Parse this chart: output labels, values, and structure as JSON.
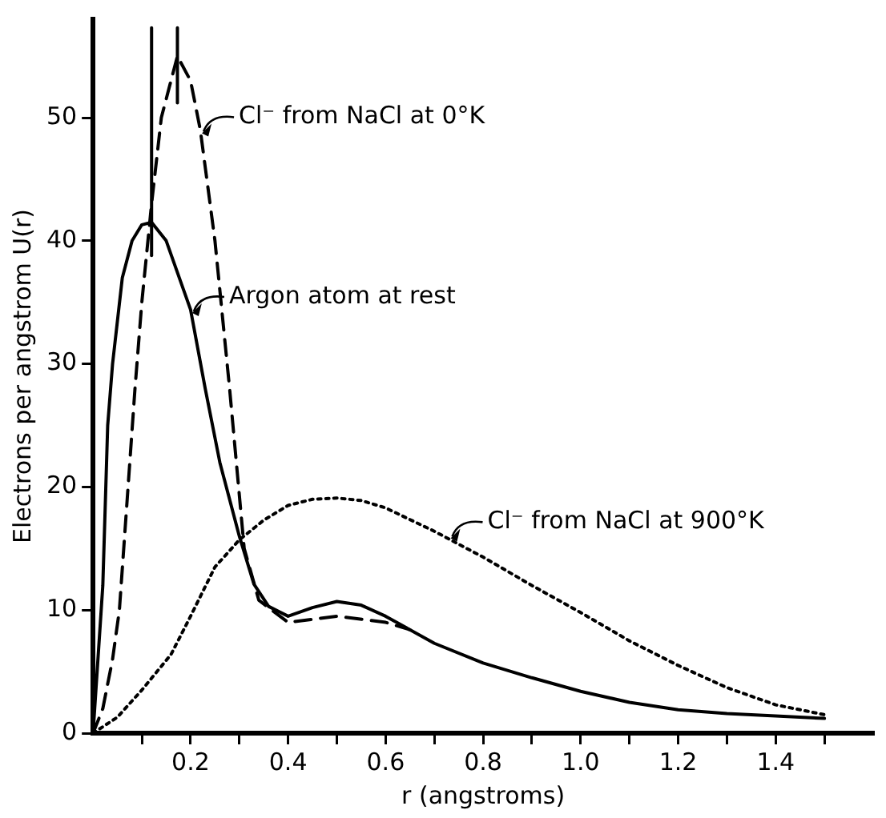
{
  "chart_data": {
    "type": "line",
    "xlabel": "r (angstroms)",
    "ylabel": "Electrons per angstrom U(r)",
    "xlim": [
      0,
      1.6
    ],
    "ylim": [
      0,
      58
    ],
    "xticks": [
      {
        "value": 0.1,
        "label": null
      },
      0.2,
      {
        "value": 0.3,
        "label": null
      },
      0.4,
      {
        "value": 0.5,
        "label": null
      },
      0.6,
      {
        "value": 0.7,
        "label": null
      },
      0.8,
      {
        "value": 0.9,
        "label": null
      },
      {
        "value": 1.0,
        "label": "1.0"
      },
      {
        "value": 1.1,
        "label": null
      },
      1.2,
      {
        "value": 1.3,
        "label": null
      },
      1.4,
      {
        "value": 1.5,
        "label": null
      }
    ],
    "yticks": [
      0,
      10,
      20,
      30,
      40,
      50
    ],
    "grid": false,
    "legend": false,
    "marker": "none",
    "series": [
      {
        "color": "#000000",
        "line_style": "solid",
        "x": [
          0,
          0.02,
          0.03,
          0.04,
          0.06,
          0.08,
          0.1,
          0.12,
          0.15,
          0.2,
          0.23,
          0.26,
          0.3,
          0.33,
          0.36,
          0.4,
          0.45,
          0.5,
          0.55,
          0.6,
          0.7,
          0.8,
          0.9,
          1.0,
          1.1,
          1.2,
          1.3,
          1.4,
          1.5
        ],
        "values": [
          0,
          12,
          25,
          30,
          37,
          40,
          41.3,
          41.5,
          40,
          34.4,
          28,
          22,
          16,
          12.1,
          10.3,
          9.5,
          10.2,
          10.7,
          10.4,
          9.5,
          7.3,
          5.7,
          4.5,
          3.4,
          2.5,
          1.9,
          1.6,
          1.4,
          1.2
        ]
      },
      {
        "color": "#000000",
        "line_style": "dashed",
        "x": [
          0,
          0.02,
          0.04,
          0.054,
          0.07,
          0.086,
          0.1,
          0.12,
          0.14,
          0.173,
          0.2,
          0.22,
          0.25,
          0.28,
          0.31,
          0.34,
          0.4,
          0.5,
          0.6,
          0.65
        ],
        "values": [
          0,
          2,
          6,
          10,
          19,
          28,
          35,
          43,
          50,
          55,
          53,
          49,
          40,
          28,
          15,
          10.8,
          9,
          9.5,
          9,
          8.4
        ]
      },
      {
        "color": "#000000",
        "line_style": "dotted",
        "x": [
          0,
          0.05,
          0.1,
          0.16,
          0.2,
          0.25,
          0.3,
          0.35,
          0.4,
          0.45,
          0.5,
          0.55,
          0.6,
          0.7,
          0.8,
          0.9,
          1.0,
          1.1,
          1.2,
          1.3,
          1.4,
          1.5
        ],
        "values": [
          0,
          1.3,
          3.5,
          6.4,
          9.5,
          13.5,
          15.7,
          17.3,
          18.5,
          19,
          19.1,
          18.9,
          18.3,
          16.4,
          14.3,
          12,
          9.8,
          7.5,
          5.5,
          3.7,
          2.3,
          1.5
        ]
      },
      {
        "color": "#000000",
        "line_style": "solid",
        "x": [
          0.12,
          0.12
        ],
        "values": [
          38.8,
          57.3
        ]
      },
      {
        "color": "#000000",
        "line_style": "solid",
        "x": [
          0.173,
          0.173
        ],
        "values": [
          51.2,
          57.3
        ]
      }
    ],
    "annotations": [
      {
        "text": "Cl⁻ from NaCl at 0°K",
        "x": 0.22,
        "y": 49
      },
      {
        "text": "Argon atom at rest",
        "x": 0.2,
        "y": 34.4
      },
      {
        "text": "Cl⁻ from NaCl at 900°K",
        "x": 0.73,
        "y": 16.1
      }
    ]
  }
}
